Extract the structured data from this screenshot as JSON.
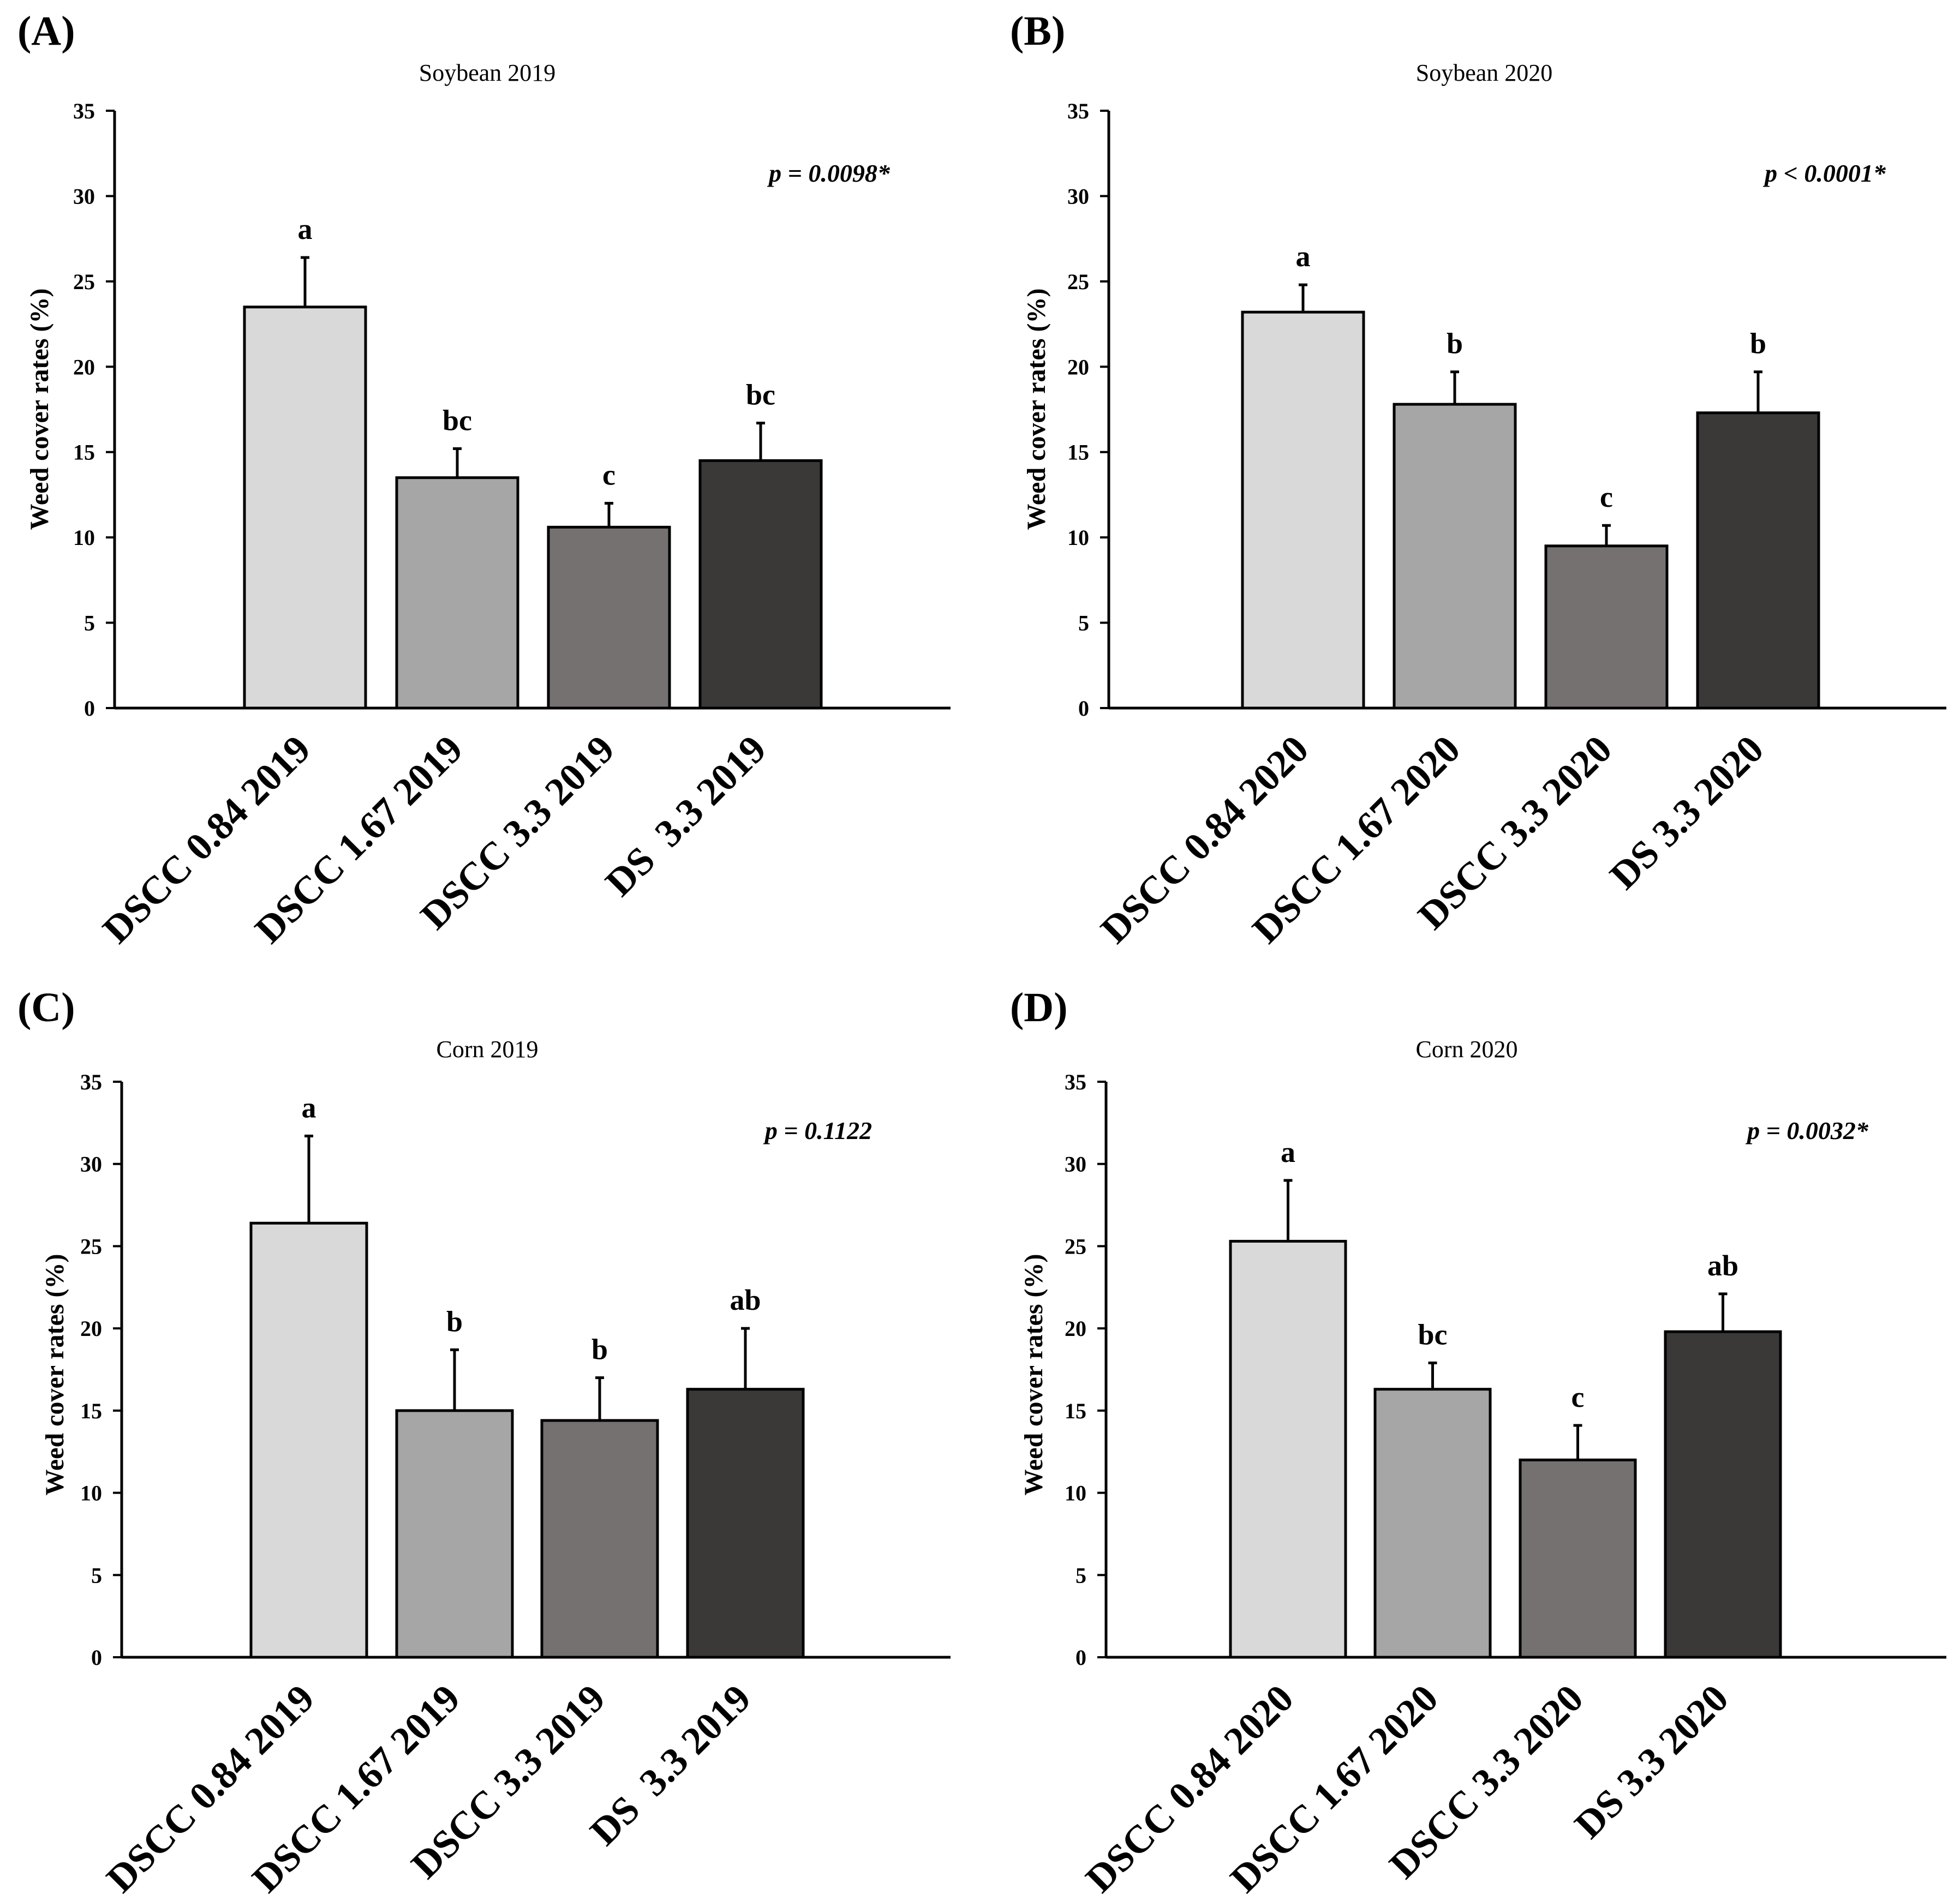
{
  "figure": {
    "panel_count": 4
  },
  "chart_data": [
    {
      "type": "bar",
      "panel_label": "(A)",
      "title": "Soybean 2019",
      "ylabel": "Weed cover rates (%)",
      "xlabel": "",
      "ylim": [
        0,
        35
      ],
      "yticks": [
        0,
        5,
        10,
        15,
        20,
        25,
        30,
        35
      ],
      "categories": [
        "DSCC 0.84 2019",
        "DSCC 1.67 2019",
        "DSCC 3.3 2019",
        "DS  3.3 2019"
      ],
      "values": [
        23.5,
        13.5,
        10.6,
        14.5
      ],
      "error": [
        2.9,
        1.7,
        1.4,
        2.2
      ],
      "letters": [
        "a",
        "bc",
        "c",
        "bc"
      ],
      "p_value": "p = 0.0098*",
      "bar_colors": [
        "#d9d9d9",
        "#a6a6a6",
        "#767171",
        "#3b3838"
      ]
    },
    {
      "type": "bar",
      "panel_label": "(B)",
      "title": "Soybean 2020",
      "ylabel": "Weed cover rates (%)",
      "xlabel": "",
      "ylim": [
        0,
        35
      ],
      "yticks": [
        0,
        5,
        10,
        15,
        20,
        25,
        30,
        35
      ],
      "categories": [
        "DSCC 0.84 2020",
        "DSCC 1.67 2020",
        "DSCC 3.3 2020",
        "DS 3.3 2020"
      ],
      "values": [
        23.2,
        17.8,
        9.5,
        17.3
      ],
      "error": [
        1.6,
        1.9,
        1.2,
        2.4
      ],
      "letters": [
        "a",
        "b",
        "c",
        "b"
      ],
      "p_value": "p < 0.0001*",
      "bar_colors": [
        "#d9d9d9",
        "#a6a6a6",
        "#767171",
        "#3b3838"
      ]
    },
    {
      "type": "bar",
      "panel_label": "(C)",
      "title": "Corn 2019",
      "ylabel": "Weed cover rates (%)",
      "xlabel": "",
      "ylim": [
        0,
        35
      ],
      "yticks": [
        0,
        5,
        10,
        15,
        20,
        25,
        30,
        35
      ],
      "categories": [
        "DSCC 0.84 2019",
        "DSCC 1.67 2019",
        "DSCC 3.3 2019",
        "DS  3.3 2019"
      ],
      "values": [
        26.4,
        15.0,
        14.4,
        16.3
      ],
      "error": [
        5.3,
        3.7,
        2.6,
        3.7
      ],
      "letters": [
        "a",
        "b",
        "b",
        "ab"
      ],
      "p_value": "p = 0.1122",
      "bar_colors": [
        "#d9d9d9",
        "#a6a6a6",
        "#767171",
        "#3b3838"
      ]
    },
    {
      "type": "bar",
      "panel_label": "(D)",
      "title": "Corn 2020",
      "ylabel": "Weed cover rates (%)",
      "xlabel": "",
      "ylim": [
        0,
        35
      ],
      "yticks": [
        0,
        5,
        10,
        15,
        20,
        25,
        30,
        35
      ],
      "categories": [
        "DSCC 0.84 2020",
        "DSCC 1.67 2020",
        "DSCC 3.3 2020",
        "DS 3.3 2020"
      ],
      "values": [
        25.3,
        16.3,
        12.0,
        19.8
      ],
      "error": [
        3.7,
        1.6,
        2.1,
        2.3
      ],
      "letters": [
        "a",
        "bc",
        "c",
        "ab"
      ],
      "p_value": "p = 0.0032*",
      "bar_colors": [
        "#d9d9d9",
        "#a6a6a6",
        "#767171",
        "#3b3838"
      ]
    }
  ]
}
